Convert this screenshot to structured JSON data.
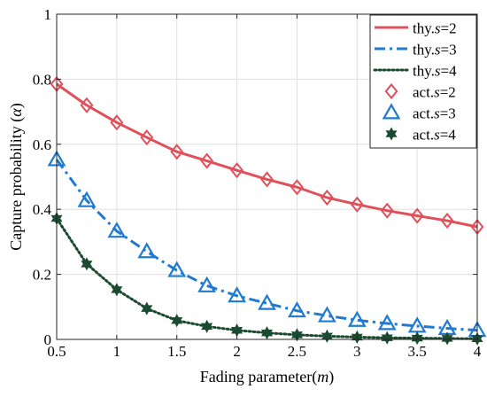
{
  "chart_data": {
    "type": "line",
    "xlabel_prefix": "Fading parameter(",
    "xlabel_var": "m",
    "xlabel_suffix": ")",
    "ylabel_prefix": "Capture probability (",
    "ylabel_var": "α",
    "ylabel_suffix": ")",
    "xlim": [
      0.5,
      4
    ],
    "ylim": [
      0,
      1
    ],
    "x_ticks": [
      0.5,
      1,
      1.5,
      2,
      2.5,
      3,
      3.5,
      4
    ],
    "x_tick_labels": [
      "0.5",
      "1",
      "1.5",
      "2",
      "2.5",
      "3",
      "3.5",
      "4"
    ],
    "y_ticks": [
      0,
      0.2,
      0.4,
      0.6,
      0.8,
      1
    ],
    "y_tick_labels": [
      "0",
      "0.2",
      "0.4",
      "0.6",
      "0.8",
      "1"
    ],
    "grid": true,
    "legend_position": "top-right",
    "x": [
      0.5,
      0.75,
      1,
      1.25,
      1.5,
      1.75,
      2,
      2.25,
      2.5,
      2.75,
      3,
      3.25,
      3.5,
      3.75,
      4
    ],
    "theory_series": [
      {
        "legend_prefix": "thy.",
        "legend_var": "s",
        "legend_suffix": "=2",
        "color": "#e0505a",
        "line_style": "solid",
        "values": [
          0.785,
          0.72,
          0.667,
          0.621,
          0.577,
          0.549,
          0.52,
          0.492,
          0.468,
          0.436,
          0.415,
          0.396,
          0.38,
          0.365,
          0.346
        ]
      },
      {
        "legend_prefix": "thy.",
        "legend_var": "s",
        "legend_suffix": "=3",
        "color": "#1f7ad0",
        "line_style": "dash-dot",
        "values": [
          0.553,
          0.427,
          0.333,
          0.27,
          0.212,
          0.165,
          0.134,
          0.111,
          0.088,
          0.073,
          0.059,
          0.049,
          0.041,
          0.034,
          0.028
        ]
      },
      {
        "legend_prefix": "thy.",
        "legend_var": "s",
        "legend_suffix": "=4",
        "color": "#1a4a30",
        "line_style": "dotted",
        "values": [
          0.372,
          0.232,
          0.153,
          0.095,
          0.058,
          0.04,
          0.028,
          0.02,
          0.014,
          0.01,
          0.007,
          0.005,
          0.004,
          0.003,
          0.002
        ]
      }
    ],
    "actual_series": [
      {
        "legend_prefix": "act.",
        "legend_var": "s",
        "legend_suffix": "=2",
        "color": "#e0505a",
        "marker": "diamond",
        "values": [
          0.785,
          0.72,
          0.667,
          0.621,
          0.577,
          0.549,
          0.52,
          0.492,
          0.468,
          0.436,
          0.415,
          0.396,
          0.38,
          0.365,
          0.346
        ]
      },
      {
        "legend_prefix": "act.",
        "legend_var": "s",
        "legend_suffix": "=3",
        "color": "#1f7ad0",
        "marker": "triangle",
        "values": [
          0.553,
          0.427,
          0.333,
          0.27,
          0.212,
          0.165,
          0.134,
          0.111,
          0.088,
          0.073,
          0.059,
          0.049,
          0.041,
          0.034,
          0.028
        ]
      },
      {
        "legend_prefix": "act.",
        "legend_var": "s",
        "legend_suffix": "=4",
        "color": "#1a4a30",
        "marker": "hexagram",
        "values": [
          0.372,
          0.232,
          0.153,
          0.095,
          0.058,
          0.04,
          0.028,
          0.02,
          0.014,
          0.01,
          0.007,
          0.005,
          0.004,
          0.003,
          0.002
        ]
      }
    ]
  }
}
